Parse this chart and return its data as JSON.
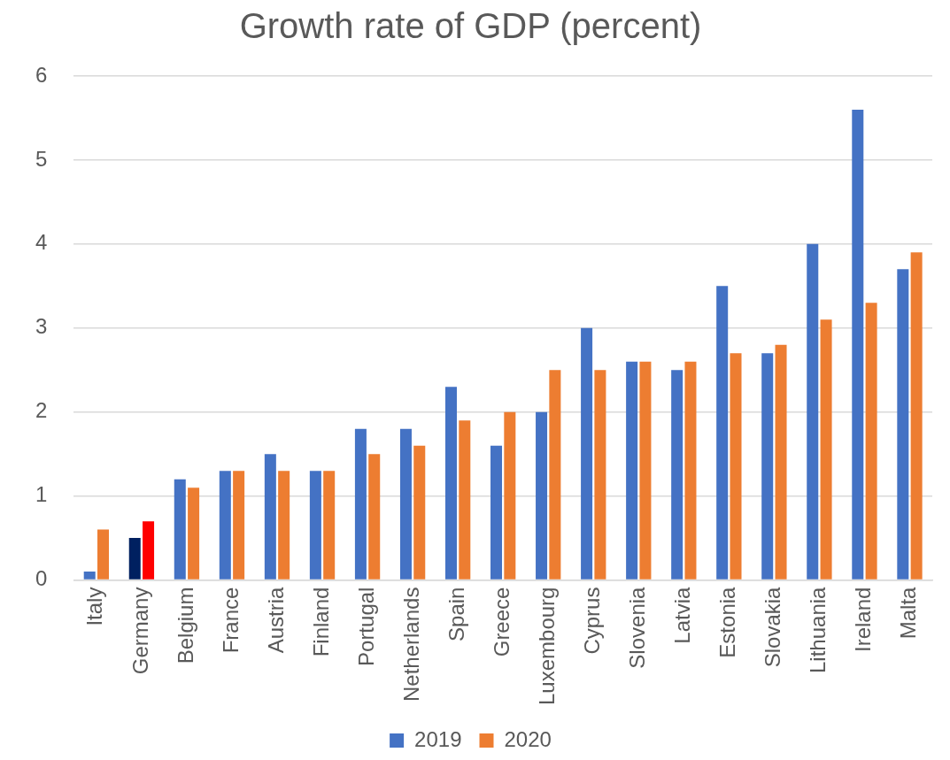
{
  "chart_data": {
    "type": "bar",
    "title": "Growth rate of GDP (percent)",
    "categories": [
      "Italy",
      "Germany",
      "Belgium",
      "France",
      "Austria",
      "Finland",
      "Portugal",
      "Netherlands",
      "Spain",
      "Greece",
      "Luxembourg",
      "Cyprus",
      "Slovenia",
      "Latvia",
      "Estonia",
      "Slovakia",
      "Lithuania",
      "Ireland",
      "Malta"
    ],
    "series": [
      {
        "name": "2019",
        "color": "#4472c4",
        "colors": [
          "#4472c4",
          "#002060",
          "#4472c4",
          "#4472c4",
          "#4472c4",
          "#4472c4",
          "#4472c4",
          "#4472c4",
          "#4472c4",
          "#4472c4",
          "#4472c4",
          "#4472c4",
          "#4472c4",
          "#4472c4",
          "#4472c4",
          "#4472c4",
          "#4472c4",
          "#4472c4",
          "#4472c4"
        ],
        "values": [
          0.1,
          0.5,
          1.2,
          1.3,
          1.5,
          1.3,
          1.8,
          1.8,
          2.3,
          1.6,
          2.0,
          3.0,
          2.6,
          2.5,
          3.5,
          2.7,
          4.0,
          5.6,
          3.7
        ]
      },
      {
        "name": "2020",
        "color": "#ed7d31",
        "colors": [
          "#ed7d31",
          "#ff0000",
          "#ed7d31",
          "#ed7d31",
          "#ed7d31",
          "#ed7d31",
          "#ed7d31",
          "#ed7d31",
          "#ed7d31",
          "#ed7d31",
          "#ed7d31",
          "#ed7d31",
          "#ed7d31",
          "#ed7d31",
          "#ed7d31",
          "#ed7d31",
          "#ed7d31",
          "#ed7d31",
          "#ed7d31"
        ],
        "values": [
          0.6,
          0.7,
          1.1,
          1.3,
          1.3,
          1.3,
          1.5,
          1.6,
          1.9,
          2.0,
          2.5,
          2.5,
          2.6,
          2.6,
          2.7,
          2.8,
          3.1,
          3.3,
          3.9
        ]
      }
    ],
    "ylim": [
      0,
      6
    ],
    "yticks": [
      0,
      1,
      2,
      3,
      4,
      5,
      6
    ],
    "grid": "y",
    "legend": "bottom"
  }
}
